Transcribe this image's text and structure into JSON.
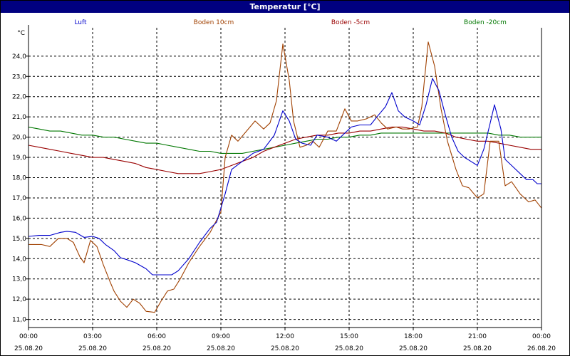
{
  "title": "Temperatur [°C]",
  "chart_data": {
    "type": "line",
    "title": "Temperatur [°C]",
    "ylabel": "°C",
    "ylim": [
      10.6,
      25.4
    ],
    "xlim_hours": [
      0,
      24
    ],
    "yticks": [
      "11,0",
      "12,0",
      "13,0",
      "14,0",
      "15,0",
      "16,0",
      "17,0",
      "18,0",
      "19,0",
      "20,0",
      "21,0",
      "22,0",
      "23,0",
      "24,0"
    ],
    "xticks": [
      {
        "time": "00:00",
        "date": "25.08.20"
      },
      {
        "time": "03:00",
        "date": "25.08.20"
      },
      {
        "time": "06:00",
        "date": "25.08.20"
      },
      {
        "time": "09:00",
        "date": "25.08.20"
      },
      {
        "time": "12:00",
        "date": "25.08.20"
      },
      {
        "time": "15:00",
        "date": "25.08.20"
      },
      {
        "time": "18:00",
        "date": "25.08.20"
      },
      {
        "time": "21:00",
        "date": "25.08.20"
      },
      {
        "time": "00:00",
        "date": "26.08.20"
      }
    ],
    "grid": true,
    "legend_position": "top",
    "series": [
      {
        "name": "Luft",
        "color": "#0000cc",
        "points": [
          [
            0,
            15.1
          ],
          [
            0.5,
            15.15
          ],
          [
            1,
            15.15
          ],
          [
            1.5,
            15.3
          ],
          [
            1.8,
            15.35
          ],
          [
            2.2,
            15.3
          ],
          [
            2.6,
            15.05
          ],
          [
            3,
            15.1
          ],
          [
            3.3,
            15.0
          ],
          [
            3.6,
            14.7
          ],
          [
            4,
            14.4
          ],
          [
            4.3,
            14.05
          ],
          [
            4.6,
            13.95
          ],
          [
            5,
            13.8
          ],
          [
            5.5,
            13.5
          ],
          [
            5.8,
            13.2
          ],
          [
            6.3,
            13.2
          ],
          [
            6.7,
            13.2
          ],
          [
            7,
            13.4
          ],
          [
            7.5,
            14.0
          ],
          [
            8,
            14.8
          ],
          [
            8.5,
            15.5
          ],
          [
            8.8,
            15.8
          ],
          [
            9.2,
            17.2
          ],
          [
            9.5,
            18.4
          ],
          [
            10,
            18.8
          ],
          [
            10.5,
            19.2
          ],
          [
            11,
            19.4
          ],
          [
            11.5,
            20.1
          ],
          [
            11.9,
            21.3
          ],
          [
            12.2,
            20.8
          ],
          [
            12.5,
            19.9
          ],
          [
            12.8,
            19.7
          ],
          [
            13.2,
            19.6
          ],
          [
            13.5,
            20.1
          ],
          [
            14,
            20.0
          ],
          [
            14.4,
            19.8
          ],
          [
            14.8,
            20.2
          ],
          [
            15.1,
            20.5
          ],
          [
            15.5,
            20.6
          ],
          [
            16,
            20.6
          ],
          [
            16.3,
            21.0
          ],
          [
            16.7,
            21.5
          ],
          [
            17,
            22.2
          ],
          [
            17.3,
            21.3
          ],
          [
            17.6,
            21.0
          ],
          [
            18,
            20.8
          ],
          [
            18.3,
            20.6
          ],
          [
            18.6,
            21.6
          ],
          [
            18.9,
            22.9
          ],
          [
            19.2,
            22.3
          ],
          [
            19.5,
            21.1
          ],
          [
            19.8,
            20.0
          ],
          [
            20.1,
            19.3
          ],
          [
            20.4,
            19.0
          ],
          [
            20.7,
            18.8
          ],
          [
            21,
            18.6
          ],
          [
            21.3,
            19.4
          ],
          [
            21.6,
            20.7
          ],
          [
            21.8,
            21.6
          ],
          [
            22.1,
            20.4
          ],
          [
            22.3,
            18.9
          ],
          [
            22.6,
            18.6
          ],
          [
            23,
            18.2
          ],
          [
            23.3,
            17.9
          ],
          [
            23.6,
            17.9
          ],
          [
            23.8,
            17.7
          ],
          [
            24,
            17.7
          ]
        ]
      },
      {
        "name": "Boden 10cm",
        "color": "#a04000",
        "points": [
          [
            0,
            14.7
          ],
          [
            0.6,
            14.7
          ],
          [
            1,
            14.6
          ],
          [
            1.4,
            15.0
          ],
          [
            1.8,
            15.0
          ],
          [
            2.1,
            14.8
          ],
          [
            2.4,
            14.1
          ],
          [
            2.6,
            13.8
          ],
          [
            2.9,
            14.9
          ],
          [
            3.2,
            14.6
          ],
          [
            3.5,
            13.7
          ],
          [
            3.8,
            12.9
          ],
          [
            4,
            12.4
          ],
          [
            4.3,
            11.9
          ],
          [
            4.6,
            11.6
          ],
          [
            4.9,
            12.0
          ],
          [
            5.2,
            11.8
          ],
          [
            5.5,
            11.4
          ],
          [
            5.9,
            11.35
          ],
          [
            6.2,
            11.9
          ],
          [
            6.5,
            12.4
          ],
          [
            6.8,
            12.5
          ],
          [
            7.1,
            13.0
          ],
          [
            7.5,
            13.8
          ],
          [
            8,
            14.6
          ],
          [
            8.5,
            15.3
          ],
          [
            9,
            16.3
          ],
          [
            9.2,
            19.0
          ],
          [
            9.5,
            20.1
          ],
          [
            9.8,
            19.8
          ],
          [
            10.2,
            20.3
          ],
          [
            10.6,
            20.8
          ],
          [
            11,
            20.4
          ],
          [
            11.3,
            20.7
          ],
          [
            11.6,
            21.8
          ],
          [
            11.9,
            24.6
          ],
          [
            12.2,
            22.8
          ],
          [
            12.4,
            20.8
          ],
          [
            12.7,
            19.5
          ],
          [
            13,
            19.6
          ],
          [
            13.3,
            19.8
          ],
          [
            13.6,
            19.5
          ],
          [
            14,
            20.3
          ],
          [
            14.4,
            20.3
          ],
          [
            14.8,
            21.4
          ],
          [
            15.1,
            20.8
          ],
          [
            15.4,
            20.8
          ],
          [
            15.8,
            20.9
          ],
          [
            16.2,
            21.1
          ],
          [
            16.5,
            20.7
          ],
          [
            16.8,
            20.4
          ],
          [
            17.2,
            20.5
          ],
          [
            17.5,
            20.4
          ],
          [
            17.8,
            20.4
          ],
          [
            18.2,
            20.5
          ],
          [
            18.4,
            21.5
          ],
          [
            18.7,
            24.7
          ],
          [
            19,
            23.5
          ],
          [
            19.3,
            21.4
          ],
          [
            19.6,
            19.8
          ],
          [
            20,
            18.4
          ],
          [
            20.3,
            17.6
          ],
          [
            20.6,
            17.5
          ],
          [
            21,
            17.0
          ],
          [
            21.3,
            17.2
          ],
          [
            21.6,
            19.8
          ],
          [
            22,
            19.8
          ],
          [
            22.3,
            17.6
          ],
          [
            22.6,
            17.8
          ],
          [
            23,
            17.2
          ],
          [
            23.4,
            16.8
          ],
          [
            23.7,
            16.9
          ],
          [
            24,
            16.5
          ]
        ]
      },
      {
        "name": "Boden -5cm",
        "color": "#990000",
        "points": [
          [
            0,
            19.6
          ],
          [
            0.5,
            19.5
          ],
          [
            1,
            19.4
          ],
          [
            1.5,
            19.3
          ],
          [
            2,
            19.2
          ],
          [
            2.5,
            19.1
          ],
          [
            3,
            19.0
          ],
          [
            3.5,
            19.0
          ],
          [
            4,
            18.9
          ],
          [
            4.5,
            18.8
          ],
          [
            5,
            18.7
          ],
          [
            5.5,
            18.5
          ],
          [
            6,
            18.4
          ],
          [
            6.5,
            18.3
          ],
          [
            7,
            18.2
          ],
          [
            7.5,
            18.2
          ],
          [
            8,
            18.2
          ],
          [
            8.5,
            18.3
          ],
          [
            9,
            18.4
          ],
          [
            9.5,
            18.6
          ],
          [
            10,
            18.8
          ],
          [
            10.5,
            19.0
          ],
          [
            11,
            19.3
          ],
          [
            11.5,
            19.5
          ],
          [
            12,
            19.7
          ],
          [
            12.5,
            19.9
          ],
          [
            13,
            20.0
          ],
          [
            13.5,
            20.1
          ],
          [
            14,
            20.1
          ],
          [
            14.5,
            20.2
          ],
          [
            15,
            20.2
          ],
          [
            15.5,
            20.3
          ],
          [
            16,
            20.3
          ],
          [
            16.5,
            20.4
          ],
          [
            17,
            20.5
          ],
          [
            17.5,
            20.5
          ],
          [
            18,
            20.4
          ],
          [
            18.5,
            20.3
          ],
          [
            19,
            20.3
          ],
          [
            19.5,
            20.2
          ],
          [
            20,
            20.0
          ],
          [
            20.5,
            19.9
          ],
          [
            21,
            19.8
          ],
          [
            21.5,
            19.8
          ],
          [
            22,
            19.7
          ],
          [
            22.5,
            19.6
          ],
          [
            23,
            19.5
          ],
          [
            23.5,
            19.4
          ],
          [
            24,
            19.4
          ]
        ]
      },
      {
        "name": "Boden -20cm",
        "color": "#007700",
        "points": [
          [
            0,
            20.5
          ],
          [
            0.5,
            20.4
          ],
          [
            1,
            20.3
          ],
          [
            1.5,
            20.3
          ],
          [
            2,
            20.2
          ],
          [
            2.5,
            20.1
          ],
          [
            3,
            20.1
          ],
          [
            3.5,
            20.0
          ],
          [
            4,
            20.0
          ],
          [
            4.5,
            19.9
          ],
          [
            5,
            19.8
          ],
          [
            5.5,
            19.7
          ],
          [
            6,
            19.7
          ],
          [
            6.5,
            19.6
          ],
          [
            7,
            19.5
          ],
          [
            7.5,
            19.4
          ],
          [
            8,
            19.3
          ],
          [
            8.5,
            19.3
          ],
          [
            9,
            19.2
          ],
          [
            9.5,
            19.2
          ],
          [
            10,
            19.2
          ],
          [
            10.5,
            19.3
          ],
          [
            11,
            19.4
          ],
          [
            11.5,
            19.5
          ],
          [
            12,
            19.6
          ],
          [
            12.5,
            19.7
          ],
          [
            13,
            19.8
          ],
          [
            13.5,
            19.9
          ],
          [
            14,
            19.9
          ],
          [
            14.5,
            20.0
          ],
          [
            15,
            20.0
          ],
          [
            15.5,
            20.1
          ],
          [
            16,
            20.1
          ],
          [
            16.5,
            20.2
          ],
          [
            17,
            20.2
          ],
          [
            17.5,
            20.2
          ],
          [
            18,
            20.2
          ],
          [
            18.5,
            20.2
          ],
          [
            19,
            20.2
          ],
          [
            19.5,
            20.2
          ],
          [
            20,
            20.2
          ],
          [
            20.5,
            20.2
          ],
          [
            21,
            20.2
          ],
          [
            21.5,
            20.2
          ],
          [
            22,
            20.1
          ],
          [
            22.5,
            20.1
          ],
          [
            23,
            20.0
          ],
          [
            23.5,
            20.0
          ],
          [
            24,
            20.0
          ]
        ]
      }
    ]
  }
}
